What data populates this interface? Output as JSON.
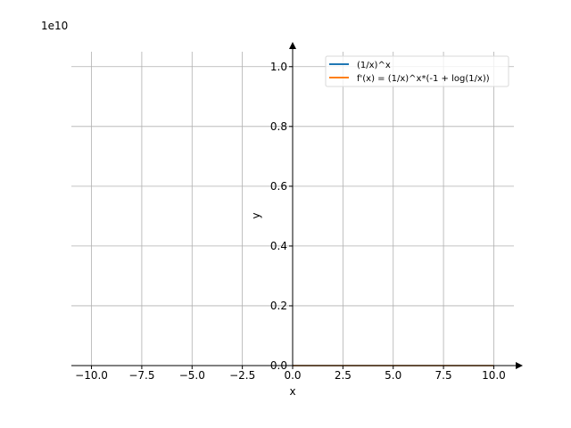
{
  "chart_data": {
    "type": "line",
    "xlabel": "x",
    "ylabel": "y",
    "y_offset_label": "1e10",
    "xlim": [
      -11,
      11
    ],
    "ylim": [
      0,
      1.05
    ],
    "x_ticks": [
      -10,
      -7.5,
      -5,
      -2.5,
      0,
      2.5,
      5,
      7.5,
      10
    ],
    "x_tick_labels": [
      "−10.0",
      "−7.5",
      "−5.0",
      "−2.5",
      "0.0",
      "2.5",
      "5.0",
      "7.5",
      "10.0"
    ],
    "y_ticks": [
      0,
      0.2,
      0.4,
      0.6,
      0.8,
      1.0
    ],
    "y_tick_labels": [
      "0.0",
      "0.2",
      "0.4",
      "0.6",
      "0.8",
      "1.0"
    ],
    "grid": true,
    "legend_position": "top-right",
    "series": [
      {
        "name": "(1/x)^x",
        "color": "#1f77b4",
        "x": [
          0,
          2.5,
          5,
          7.5,
          10
        ],
        "y": [
          0,
          0,
          0,
          0,
          0
        ]
      },
      {
        "name": "f'(x) = (1/x)^x*(-1 + log(1/x))",
        "color": "#ff7f0e",
        "x": [
          0,
          2.5,
          5,
          7.5,
          10
        ],
        "y": [
          0,
          0,
          0,
          0,
          0
        ]
      }
    ]
  }
}
